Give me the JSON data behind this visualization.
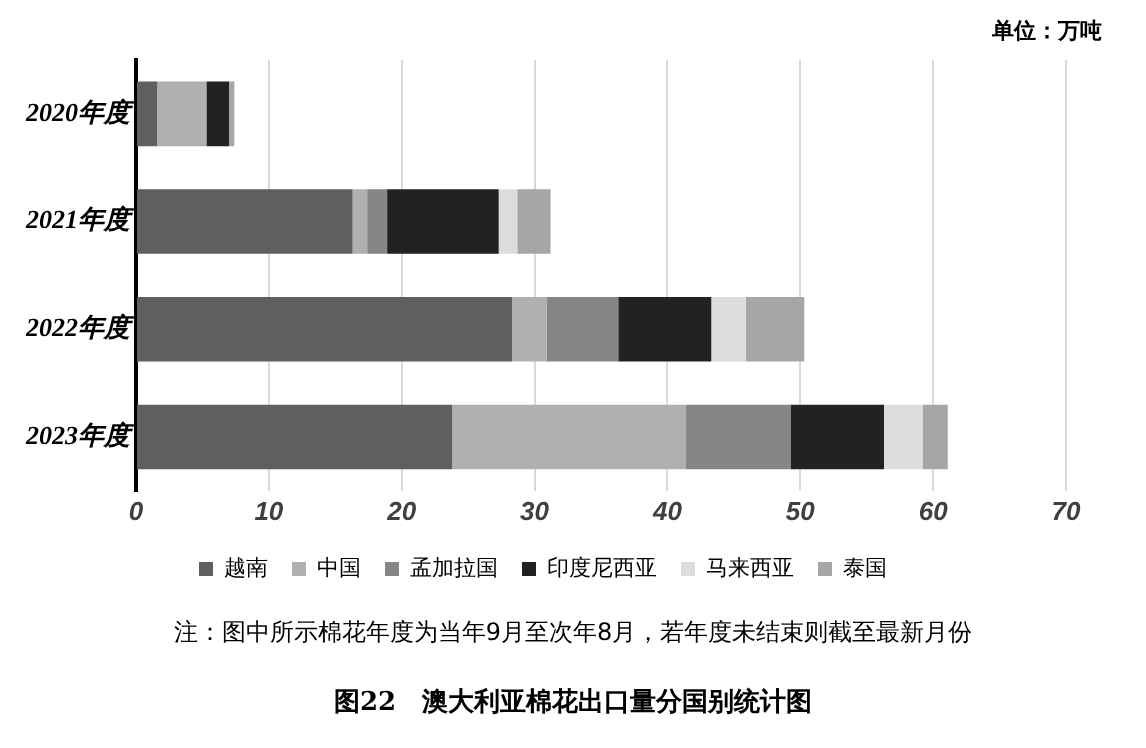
{
  "chart_data": {
    "type": "bar",
    "orientation": "horizontal",
    "stacked": true,
    "title": "图22　澳大利亚棉花出口量分国别统计图",
    "annotations": [
      "单位：万吨",
      "注：图中所示棉花年度为当年9月至次年8月，若年度未结束则截至最新月份"
    ],
    "categories": [
      "2020年度",
      "2021年度",
      "2022年度",
      "2023年度"
    ],
    "series": [
      {
        "name": "越南",
        "color": "#5f5f5f",
        "values": [
          1.6,
          16.3,
          28.3,
          23.8
        ]
      },
      {
        "name": "中国",
        "color": "#b0b0b0",
        "values": [
          3.7,
          1.1,
          2.6,
          17.6
        ]
      },
      {
        "name": "孟加拉国",
        "color": "#868686",
        "values": [
          0,
          1.5,
          5.4,
          7.9
        ]
      },
      {
        "name": "印度尼西亚",
        "color": "#222222",
        "values": [
          1.7,
          8.4,
          7.0,
          7.0
        ]
      },
      {
        "name": "马来西亚",
        "color": "#dcdcdc",
        "values": [
          0,
          1.4,
          2.6,
          2.9
        ]
      },
      {
        "name": "泰国",
        "color": "#a6a6a6",
        "values": [
          0.4,
          2.5,
          4.4,
          1.9
        ]
      }
    ],
    "xlim": [
      0,
      70
    ],
    "xticks": [
      0,
      10,
      20,
      30,
      40,
      50,
      60,
      70
    ],
    "grid": "x",
    "legend": "bottom"
  }
}
